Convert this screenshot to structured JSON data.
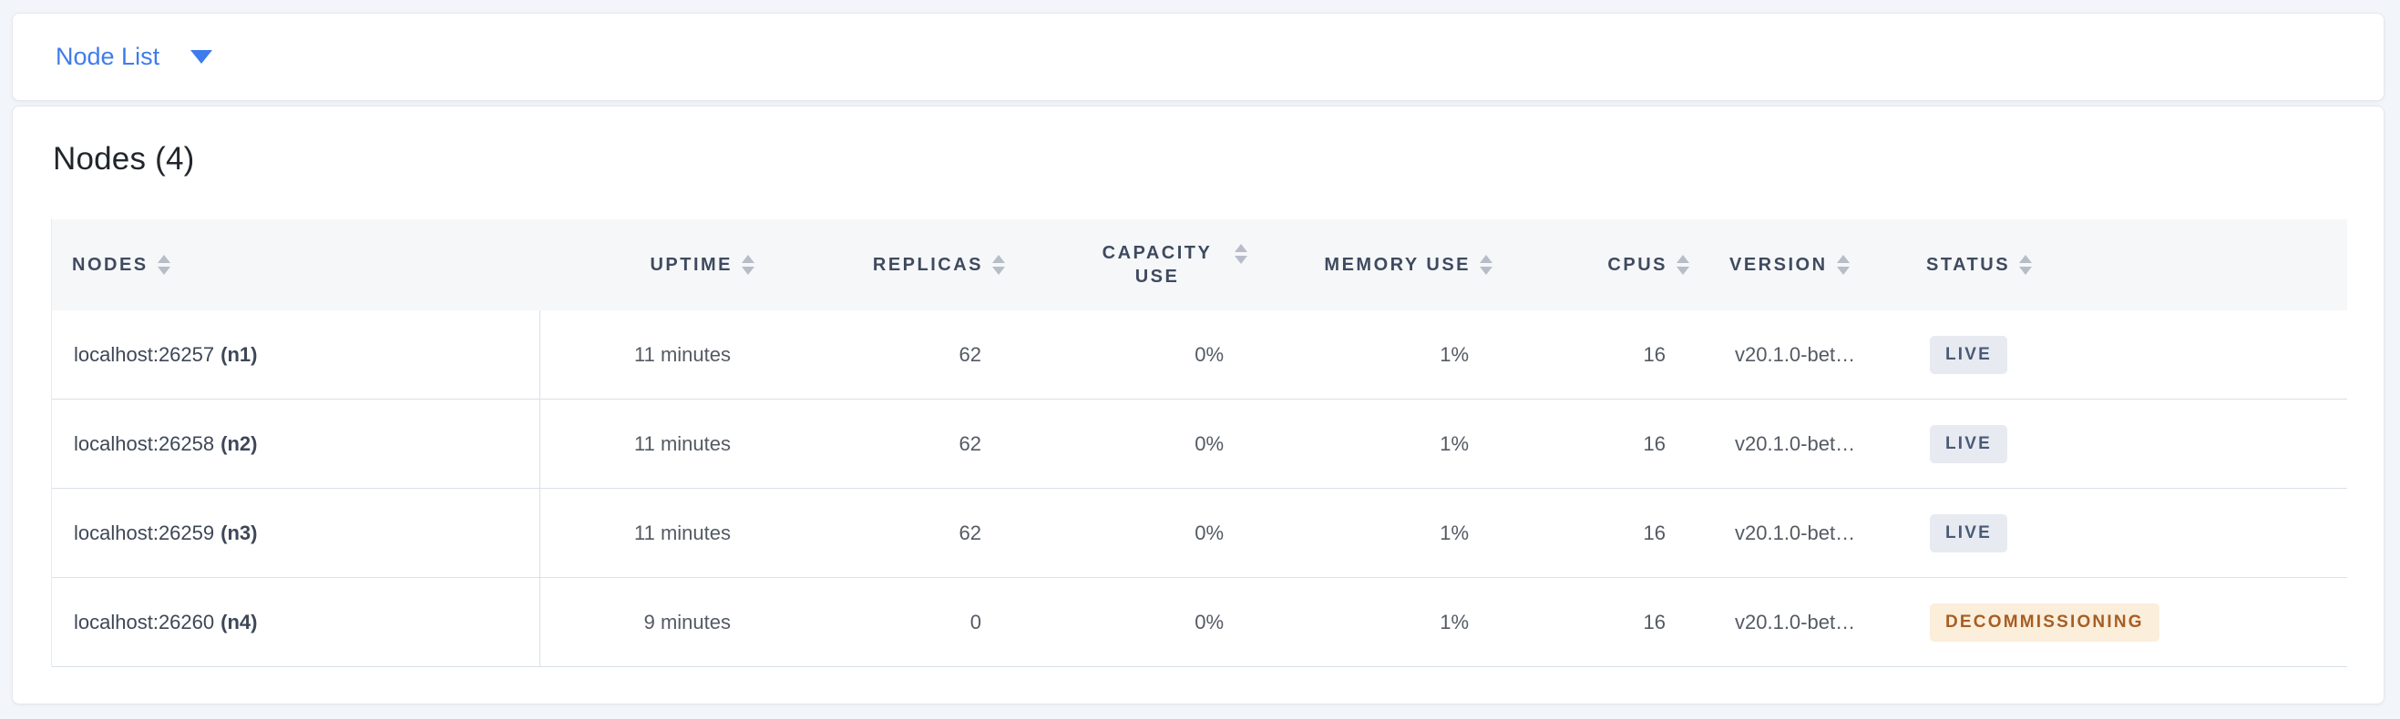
{
  "view_selector": {
    "label": "Node List"
  },
  "heading": "Nodes (4)",
  "table": {
    "columns": [
      {
        "key": "nodes",
        "label": "Nodes"
      },
      {
        "key": "uptime",
        "label": "Uptime"
      },
      {
        "key": "replicas",
        "label": "Replicas"
      },
      {
        "key": "capacity_use",
        "label": "Capacity Use"
      },
      {
        "key": "memory_use",
        "label": "Memory Use"
      },
      {
        "key": "cpus",
        "label": "CPUs"
      },
      {
        "key": "version",
        "label": "Version"
      },
      {
        "key": "status",
        "label": "Status"
      }
    ],
    "rows": [
      {
        "address": "localhost:26257",
        "id": "(n1)",
        "uptime": "11 minutes",
        "replicas": "62",
        "capacity_use": "0%",
        "memory_use": "1%",
        "cpus": "16",
        "version": "v20.1.0-bet…",
        "status": "LIVE",
        "status_type": "live"
      },
      {
        "address": "localhost:26258",
        "id": "(n2)",
        "uptime": "11 minutes",
        "replicas": "62",
        "capacity_use": "0%",
        "memory_use": "1%",
        "cpus": "16",
        "version": "v20.1.0-bet…",
        "status": "LIVE",
        "status_type": "live"
      },
      {
        "address": "localhost:26259",
        "id": "(n3)",
        "uptime": "11 minutes",
        "replicas": "62",
        "capacity_use": "0%",
        "memory_use": "1%",
        "cpus": "16",
        "version": "v20.1.0-bet…",
        "status": "LIVE",
        "status_type": "live"
      },
      {
        "address": "localhost:26260",
        "id": "(n4)",
        "uptime": "9 minutes",
        "replicas": "0",
        "capacity_use": "0%",
        "memory_use": "1%",
        "cpus": "16",
        "version": "v20.1.0-bet…",
        "status": "DECOMMISSIONING",
        "status_type": "decommissioning"
      }
    ]
  },
  "colors": {
    "accent_link": "#3E7CEC",
    "header_text": "#3F4A5F",
    "live_badge_bg": "#E7EAF1",
    "live_badge_text": "#4A5A76",
    "decommissioning_badge_bg": "#FBEEDB",
    "decommissioning_badge_text": "#A75E23",
    "page_bg": "#F2F5F9"
  }
}
